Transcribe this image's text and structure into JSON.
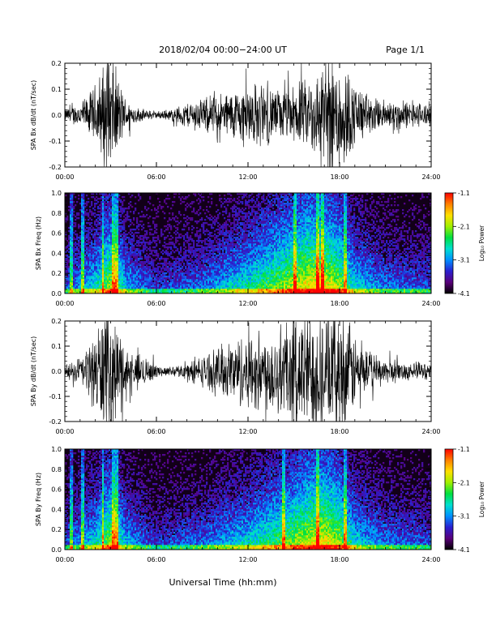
{
  "page": {
    "header_title": "2018/02/04  00:00−24:00 UT",
    "page_label": "Page 1/1",
    "x_axis_title": "Universal Time (hh:mm)"
  },
  "time_axis": {
    "ticks": [
      "00:00",
      "06:00",
      "12:00",
      "18:00",
      "24:00"
    ],
    "range_hours": [
      0,
      24
    ]
  },
  "colorbar": {
    "label": "Log₁₀ Power",
    "ticks": [
      "-1.1",
      "-2.1",
      "-3.1",
      "-4.1"
    ],
    "range": [
      -4.1,
      -1.1
    ],
    "colors": [
      "#000000",
      "#5a007a",
      "#2a1fd0",
      "#0090ff",
      "#00e0d0",
      "#00e040",
      "#a0f000",
      "#ffe000",
      "#ff8000",
      "#ff0000"
    ]
  },
  "chart_data": [
    {
      "type": "line",
      "ylabel": "SPA Bx dB/dt (nT/sec)",
      "ylim": [
        -0.2,
        0.2
      ],
      "y_ticks": [
        "0.2",
        "0.1",
        "0.0",
        "-0.1",
        "-0.2"
      ],
      "series": [
        {
          "hours": [
            0.0,
            0.5,
            1.0,
            1.5,
            2.0,
            2.5,
            3.0,
            3.5,
            4.0,
            4.5,
            5.0,
            5.5,
            6.0,
            6.5,
            7.0,
            7.5,
            8.0,
            8.5,
            9.0,
            9.5,
            10.0,
            10.5,
            11.0,
            11.5,
            12.0,
            12.5,
            13.0,
            13.5,
            14.0,
            14.5,
            15.0,
            15.5,
            16.0,
            16.5,
            17.0,
            17.5,
            18.0,
            18.5,
            19.0,
            19.5,
            20.0,
            20.5,
            21.0,
            21.5,
            22.0,
            22.5,
            23.0,
            23.5,
            24.0
          ],
          "amplitude": [
            0.02,
            0.03,
            0.04,
            0.06,
            0.1,
            0.16,
            0.2,
            0.12,
            0.05,
            0.03,
            0.02,
            0.015,
            0.012,
            0.015,
            0.02,
            0.03,
            0.04,
            0.05,
            0.05,
            0.06,
            0.07,
            0.07,
            0.08,
            0.09,
            0.1,
            0.1,
            0.1,
            0.09,
            0.08,
            0.08,
            0.09,
            0.1,
            0.12,
            0.14,
            0.17,
            0.2,
            0.2,
            0.15,
            0.1,
            0.08,
            0.06,
            0.05,
            0.05,
            0.05,
            0.05,
            0.04,
            0.04,
            0.04,
            0.04
          ]
        }
      ]
    },
    {
      "type": "heatmap",
      "ylabel": "SPA Bx Freq (Hz)",
      "ylim": [
        0.0,
        1.0
      ],
      "y_ticks": [
        "1.0",
        "0.8",
        "0.6",
        "0.4",
        "0.2",
        "0.0"
      ],
      "z_range": [
        -4.1,
        -1.1
      ],
      "activity_hours": [
        0.0,
        2.0,
        3.0,
        4.0,
        6.0,
        9.0,
        12.0,
        14.0,
        16.0,
        17.0,
        18.0,
        19.0,
        21.0,
        24.0
      ],
      "activity_level": [
        0.3,
        0.5,
        0.75,
        0.45,
        0.25,
        0.35,
        0.55,
        0.7,
        0.85,
        0.85,
        0.75,
        0.5,
        0.35,
        0.3
      ],
      "spikes_hours": [
        0.45,
        1.2,
        2.5,
        3.2,
        3.4,
        15.1,
        16.6,
        16.9,
        18.4
      ]
    },
    {
      "type": "line",
      "ylabel": "SPA By dB/dt (nT/sec)",
      "ylim": [
        -0.2,
        0.2
      ],
      "y_ticks": [
        "0.2",
        "0.1",
        "0.0",
        "-0.1",
        "-0.2"
      ],
      "series": [
        {
          "hours": [
            0.0,
            0.5,
            1.0,
            1.5,
            2.0,
            2.5,
            3.0,
            3.5,
            4.0,
            4.5,
            5.0,
            5.5,
            6.0,
            6.5,
            7.0,
            7.5,
            8.0,
            8.5,
            9.0,
            9.5,
            10.0,
            10.5,
            11.0,
            11.5,
            12.0,
            12.5,
            13.0,
            13.5,
            14.0,
            14.5,
            15.0,
            15.5,
            16.0,
            16.5,
            17.0,
            17.5,
            18.0,
            18.5,
            19.0,
            19.5,
            20.0,
            20.5,
            21.0,
            21.5,
            22.0,
            22.5,
            23.0,
            23.5,
            24.0
          ],
          "amplitude": [
            0.02,
            0.03,
            0.05,
            0.08,
            0.13,
            0.2,
            0.2,
            0.15,
            0.08,
            0.05,
            0.06,
            0.04,
            0.02,
            0.015,
            0.015,
            0.02,
            0.03,
            0.04,
            0.05,
            0.06,
            0.08,
            0.09,
            0.1,
            0.12,
            0.12,
            0.13,
            0.13,
            0.14,
            0.15,
            0.17,
            0.19,
            0.2,
            0.2,
            0.2,
            0.2,
            0.2,
            0.2,
            0.17,
            0.12,
            0.08,
            0.06,
            0.05,
            0.04,
            0.04,
            0.03,
            0.03,
            0.03,
            0.03,
            0.03
          ]
        }
      ]
    },
    {
      "type": "heatmap",
      "ylabel": "SPA By Freq (Hz)",
      "ylim": [
        0.0,
        1.0
      ],
      "y_ticks": [
        "1.0",
        "0.8",
        "0.6",
        "0.4",
        "0.2",
        "0.0"
      ],
      "z_range": [
        -4.1,
        -1.1
      ],
      "activity_hours": [
        0.0,
        2.0,
        3.0,
        4.0,
        6.0,
        9.0,
        12.0,
        14.0,
        16.0,
        17.0,
        18.0,
        19.0,
        21.0,
        24.0
      ],
      "activity_level": [
        0.3,
        0.5,
        0.75,
        0.45,
        0.25,
        0.35,
        0.5,
        0.65,
        0.8,
        0.85,
        0.75,
        0.5,
        0.35,
        0.3
      ],
      "spikes_hours": [
        0.45,
        1.2,
        2.5,
        3.2,
        3.4,
        14.3,
        16.6,
        18.4
      ]
    }
  ]
}
